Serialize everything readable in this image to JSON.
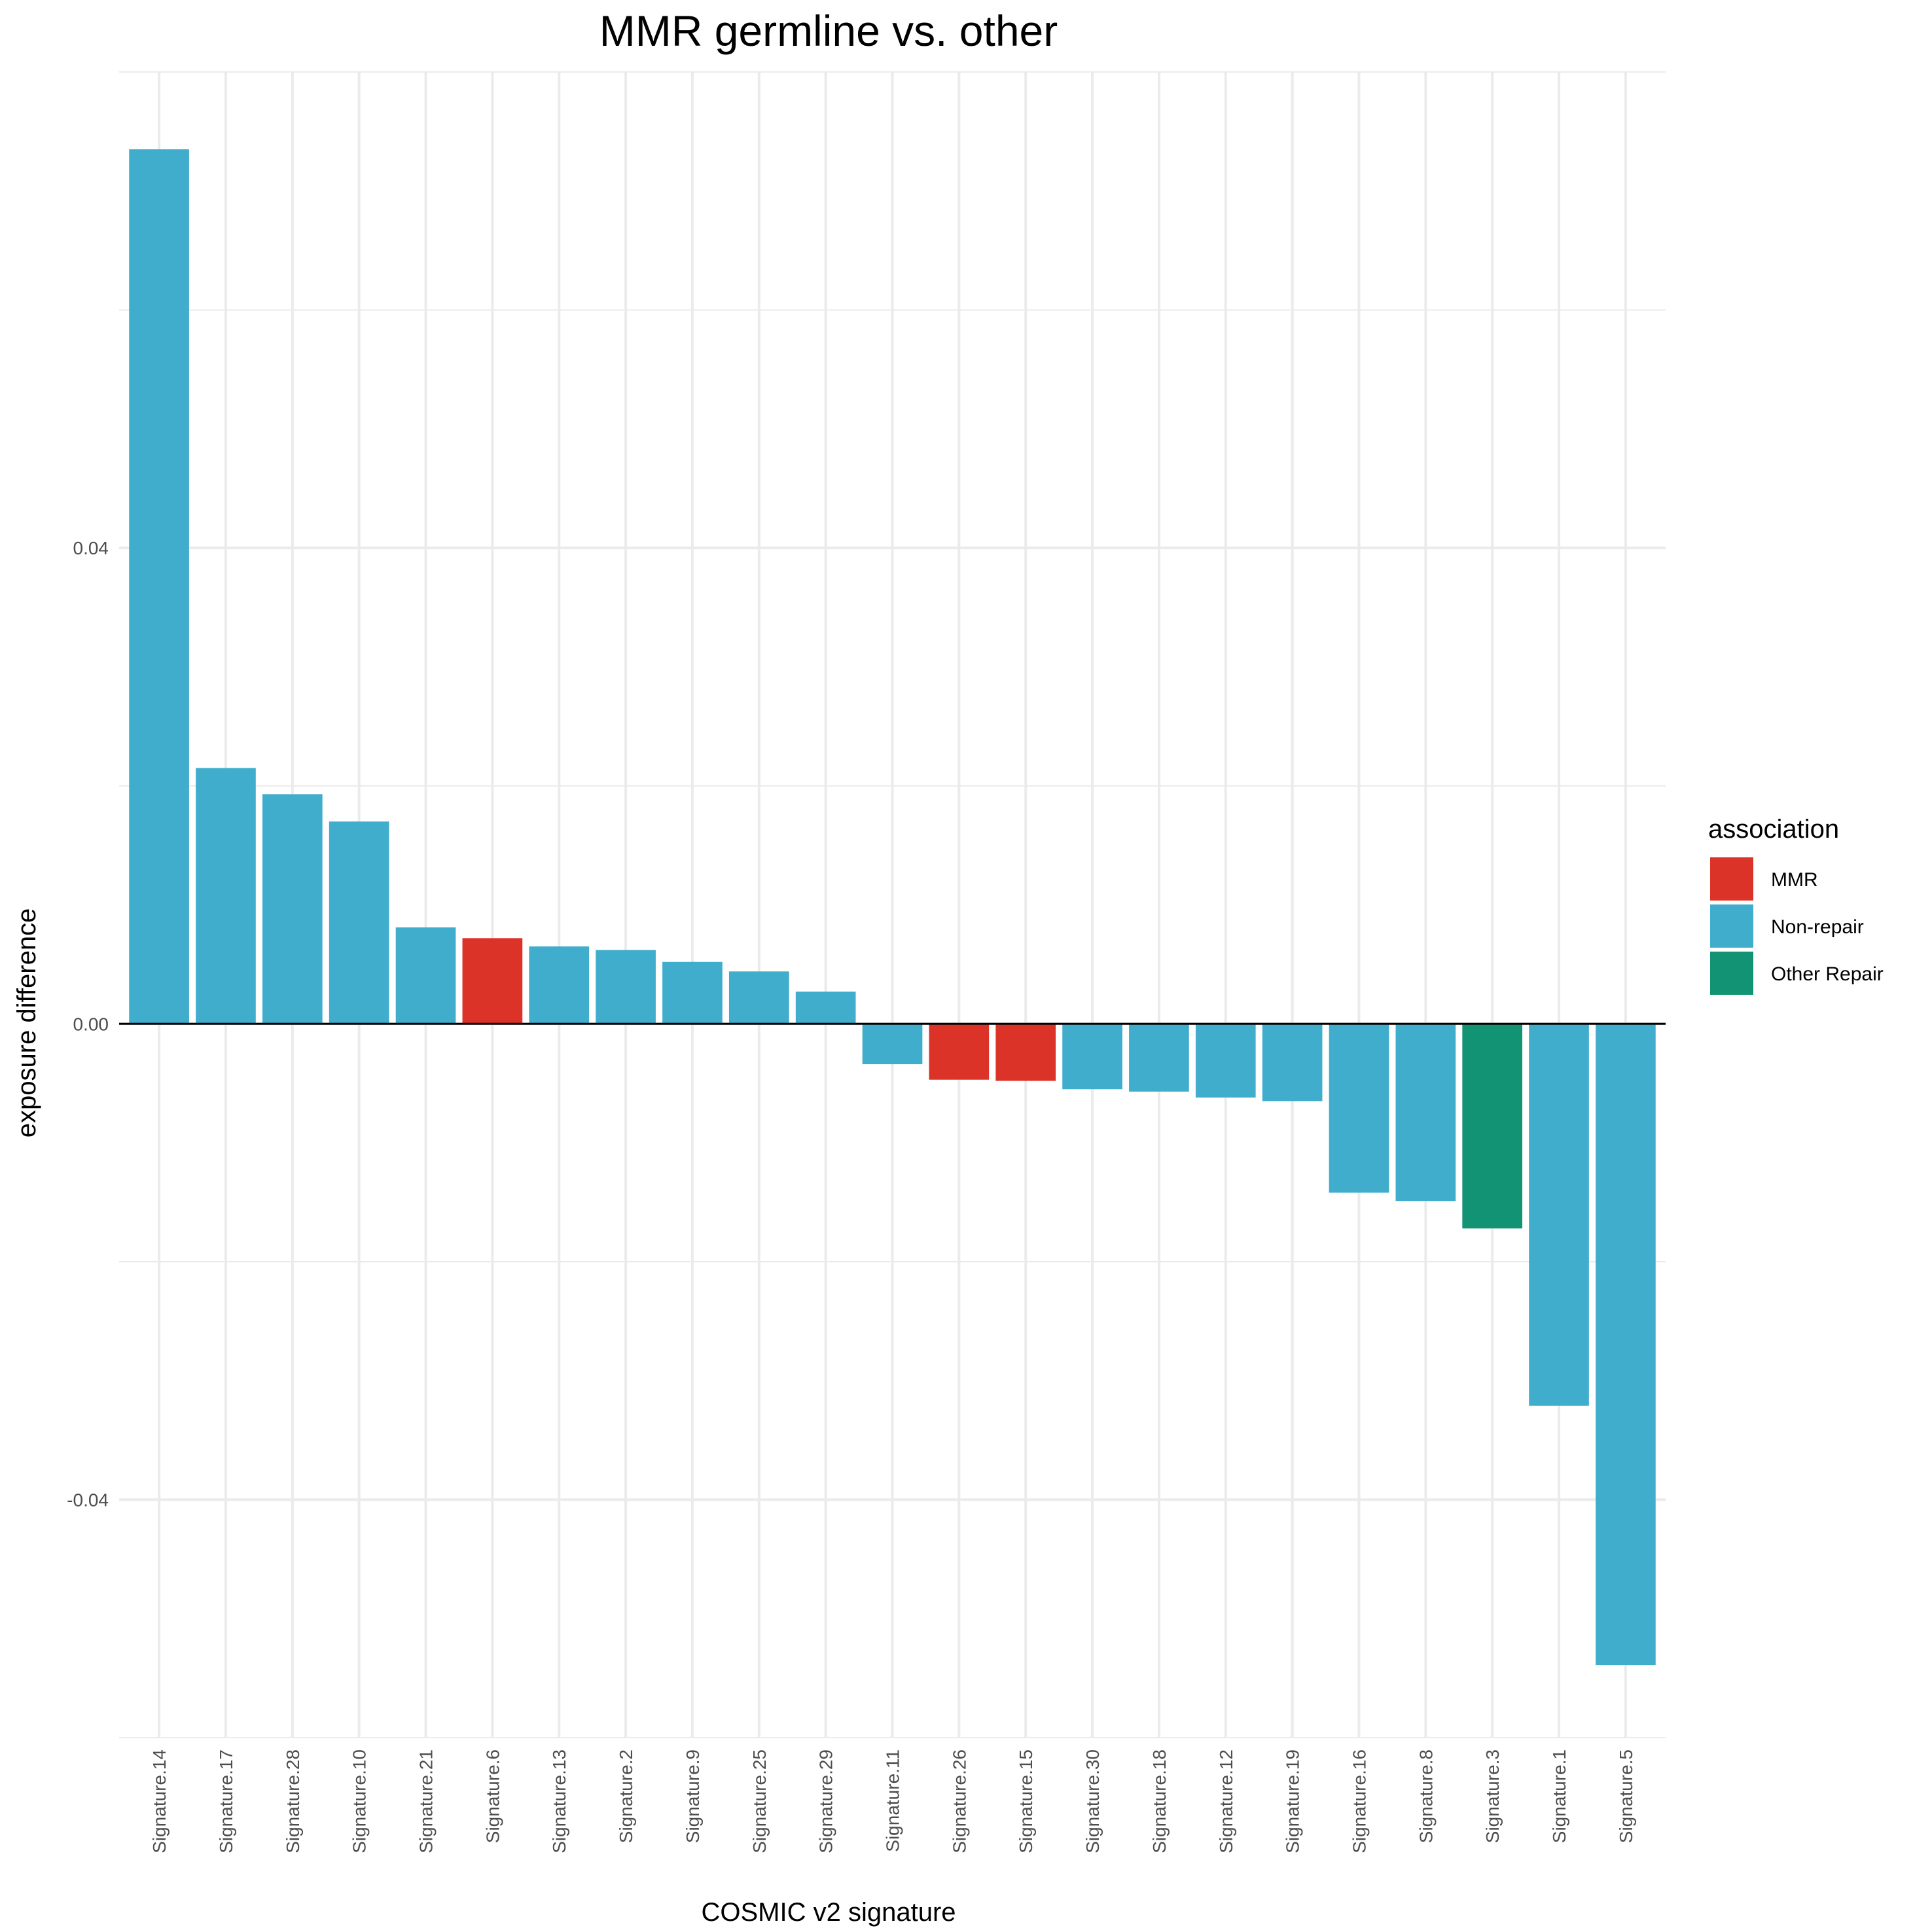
{
  "chart_data": {
    "type": "bar",
    "title": "MMR germline vs. other",
    "xlabel": "COSMIC v2 signature",
    "ylabel": "exposure difference",
    "ylim": [
      -0.06,
      0.08
    ],
    "yticks": [
      -0.04,
      0.0,
      0.04
    ],
    "ytick_labels": [
      "-0.04",
      "0.00",
      "0.04"
    ],
    "grid": true,
    "legend": {
      "title": "association",
      "placement": "right",
      "entries": [
        {
          "label": "MMR",
          "color": "#dc3328"
        },
        {
          "label": "Non-repair",
          "color": "#41adcc"
        },
        {
          "label": "Other Repair",
          "color": "#129374"
        }
      ]
    },
    "categories": [
      "Signature.14",
      "Signature.17",
      "Signature.28",
      "Signature.10",
      "Signature.21",
      "Signature.6",
      "Signature.13",
      "Signature.2",
      "Signature.9",
      "Signature.25",
      "Signature.29",
      "Signature.11",
      "Signature.26",
      "Signature.15",
      "Signature.30",
      "Signature.18",
      "Signature.12",
      "Signature.19",
      "Signature.16",
      "Signature.8",
      "Signature.3",
      "Signature.1",
      "Signature.5"
    ],
    "values": [
      0.0735,
      0.0215,
      0.0193,
      0.017,
      0.0081,
      0.0072,
      0.0065,
      0.0062,
      0.0052,
      0.0044,
      0.0027,
      -0.0034,
      -0.0047,
      -0.0048,
      -0.0055,
      -0.0057,
      -0.0062,
      -0.0065,
      -0.0142,
      -0.0149,
      -0.0172,
      -0.0321,
      -0.0539
    ],
    "association": [
      "Non-repair",
      "Non-repair",
      "Non-repair",
      "Non-repair",
      "Non-repair",
      "MMR",
      "Non-repair",
      "Non-repair",
      "Non-repair",
      "Non-repair",
      "Non-repair",
      "Non-repair",
      "MMR",
      "MMR",
      "Non-repair",
      "Non-repair",
      "Non-repair",
      "Non-repair",
      "Non-repair",
      "Non-repair",
      "Other Repair",
      "Non-repair",
      "Non-repair"
    ]
  }
}
